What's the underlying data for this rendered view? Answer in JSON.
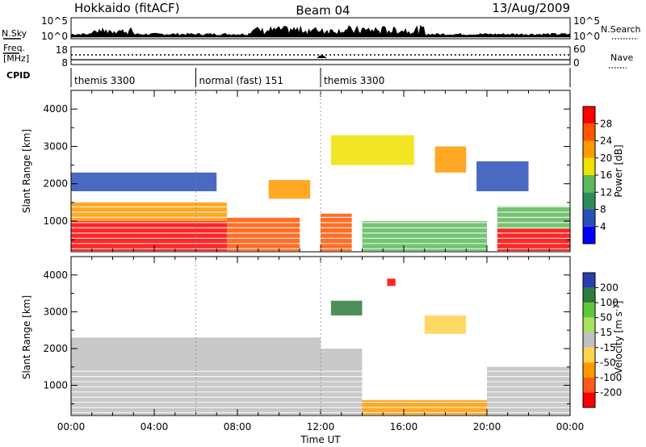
{
  "header": {
    "station": "Hokkaido (fitACF)",
    "beam": "Beam 04",
    "date": "13/Aug/2009"
  },
  "top_panels": {
    "nsky_label": "N.Sky",
    "nsearch_label": "N.Search",
    "nsky_ticks": [
      "10^5",
      "10^0"
    ],
    "nsky_ticks_right": [
      "10^5",
      "10^0"
    ],
    "freq_label_1": "Freq.",
    "freq_label_2": "[MHz]",
    "freq_ticks": [
      "18",
      "8"
    ],
    "nave_label": "Nave",
    "nave_ticks": [
      "60",
      "0"
    ],
    "cpid_label": "CPID",
    "modes": [
      {
        "start_hour": 0.0,
        "end_hour": 6.0,
        "label": "themis 3300"
      },
      {
        "start_hour": 6.0,
        "end_hour": 12.0,
        "label": "normal (fast) 151"
      },
      {
        "start_hour": 12.0,
        "end_hour": 24.0,
        "label": "themis 3300"
      }
    ]
  },
  "chart_data": [
    {
      "type": "heatmap",
      "name": "power",
      "ylabel": "Slant Range [km]",
      "ylim": [
        180,
        4500
      ],
      "yticks": [
        1000,
        2000,
        3000,
        4000
      ],
      "xlim": [
        0,
        24
      ],
      "colorbar_label": "Power [dB]",
      "colorbar_ticks": [
        4,
        8,
        12,
        16,
        20,
        24,
        28
      ],
      "colorbar_range": [
        0,
        32
      ],
      "colors": [
        "#0000ff",
        "#2a4fb8",
        "#2e8b57",
        "#5cb85c",
        "#f0e000",
        "#ff9900",
        "#ff5500",
        "#ff0000"
      ],
      "regions": [
        {
          "t0": 0.0,
          "t1": 7.5,
          "r0": 200,
          "r1": 1000,
          "value": 29
        },
        {
          "t0": 0.0,
          "t1": 7.5,
          "r0": 1000,
          "r1": 1500,
          "value": 20
        },
        {
          "t0": 0.0,
          "t1": 7.0,
          "r0": 1800,
          "r1": 2300,
          "value": 5
        },
        {
          "t0": 7.5,
          "t1": 11.0,
          "r0": 200,
          "r1": 1100,
          "value": 27
        },
        {
          "t0": 9.5,
          "t1": 11.5,
          "r0": 1600,
          "r1": 2100,
          "value": 22
        },
        {
          "t0": 12.0,
          "t1": 13.5,
          "r0": 200,
          "r1": 1200,
          "value": 27
        },
        {
          "t0": 12.5,
          "t1": 16.5,
          "r0": 2500,
          "r1": 3300,
          "value": 18
        },
        {
          "t0": 14.0,
          "t1": 20.0,
          "r0": 200,
          "r1": 1000,
          "value": 12
        },
        {
          "t0": 17.5,
          "t1": 19.0,
          "r0": 2300,
          "r1": 3000,
          "value": 22
        },
        {
          "t0": 19.5,
          "t1": 22.0,
          "r0": 1800,
          "r1": 2600,
          "value": 5
        },
        {
          "t0": 20.5,
          "t1": 24.0,
          "r0": 200,
          "r1": 800,
          "value": 28
        },
        {
          "t0": 20.5,
          "t1": 24.0,
          "r0": 800,
          "r1": 1400,
          "value": 14
        }
      ]
    },
    {
      "type": "heatmap",
      "name": "velocity",
      "ylabel": "Slant Range [km]",
      "ylim": [
        180,
        4500
      ],
      "yticks": [
        1000,
        2000,
        3000,
        4000
      ],
      "xlim": [
        0,
        24
      ],
      "xlabel": "Time UT",
      "xticks": [
        "00:00",
        "04:00",
        "08:00",
        "12:00",
        "16:00",
        "20:00",
        "00:00"
      ],
      "colorbar_label": "Velocity",
      "colorbar_unit": "[m s",
      "colorbar_unit_exp": "-1",
      "colorbar_unit_close": "]",
      "colorbar_ticks": [
        200,
        100,
        50,
        15,
        -15,
        -50,
        -100,
        -200
      ],
      "colors": [
        "#2a3faf",
        "#2e7d3c",
        "#5cc83a",
        "#a8e060",
        "#c0c0c0",
        "#ffd24a",
        "#ff9900",
        "#ff5a1e",
        "#ff0000"
      ],
      "regions": [
        {
          "t0": 0.0,
          "t1": 12.0,
          "r0": 200,
          "r1": 2300,
          "value": 0
        },
        {
          "t0": 12.0,
          "t1": 14.0,
          "r0": 200,
          "r1": 2000,
          "value": 0
        },
        {
          "t0": 12.5,
          "t1": 14.0,
          "r0": 2900,
          "r1": 3300,
          "value": 150
        },
        {
          "t0": 14.0,
          "t1": 20.0,
          "r0": 200,
          "r1": 600,
          "value": -60
        },
        {
          "t0": 15.2,
          "t1": 15.6,
          "r0": 3700,
          "r1": 3900,
          "value": -220
        },
        {
          "t0": 17.0,
          "t1": 19.0,
          "r0": 2400,
          "r1": 2900,
          "value": -30
        },
        {
          "t0": 20.0,
          "t1": 24.0,
          "r0": 200,
          "r1": 1500,
          "value": 0
        }
      ]
    }
  ]
}
